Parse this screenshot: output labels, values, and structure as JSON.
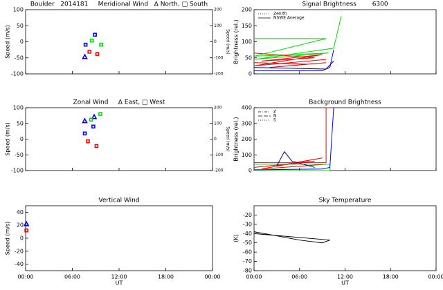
{
  "chart_data": [
    {
      "type": "scatter",
      "title": "Boulder   2014181     Meridional Wind   Δ North, □ South",
      "ylabel": "Speed (m/s)",
      "y2label": "Speed (m/s)",
      "xlim": [
        0,
        24
      ],
      "xticks": [
        0,
        6,
        12,
        18,
        24
      ],
      "ylim": [
        -100,
        100
      ],
      "yticks": [
        -100,
        -50,
        0,
        50,
        100
      ],
      "y2lim": [
        -200,
        200
      ],
      "y2ticks": [
        -200,
        -100,
        0,
        100,
        200
      ],
      "series": [
        {
          "color": "#0000ff",
          "marker": "triangle",
          "x": [
            7.6
          ],
          "values": [
            -47
          ]
        },
        {
          "color": "#0000ff",
          "marker": "square",
          "x": [
            7.7,
            8.9
          ],
          "values": [
            -9,
            22
          ]
        },
        {
          "color": "#00dd00",
          "marker": "square",
          "x": [
            8.5,
            9.7
          ],
          "values": [
            4,
            -9
          ]
        },
        {
          "color": "#ff0000",
          "marker": "square",
          "x": [
            8.2,
            9.2
          ],
          "values": [
            -31,
            -38
          ]
        }
      ]
    },
    {
      "type": "line",
      "title": "Signal Brightness        6300",
      "ylabel": "Brightness (rel.)",
      "xlim": [
        0,
        24
      ],
      "xticks": [
        0,
        6,
        12,
        18,
        24
      ],
      "ylim": [
        0,
        200
      ],
      "yticks": [
        0,
        50,
        100,
        150,
        200
      ],
      "legend": [
        {
          "label": "Zenith",
          "dash": "1,2"
        },
        {
          "label": "NSWE Average",
          "dash": "none"
        }
      ],
      "series": [
        {
          "color": "#00dd00",
          "x": [
            0,
            9.5,
            0,
            9.8,
            0,
            10.5,
            11.5
          ],
          "values": [
            110,
            110,
            55,
            65,
            45,
            80,
            180
          ]
        },
        {
          "color": "#ff0000",
          "x": [
            0,
            8,
            1,
            9,
            0,
            9.5
          ],
          "values": [
            65,
            50,
            40,
            60,
            25,
            45
          ]
        },
        {
          "color": "#cc0000",
          "x": [
            0,
            7,
            2,
            9.5
          ],
          "values": [
            35,
            30,
            20,
            35
          ]
        },
        {
          "color": "#0000ff",
          "x": [
            0,
            9,
            10,
            10.5
          ],
          "values": [
            10,
            10,
            20,
            75
          ]
        },
        {
          "color": "#00008b",
          "x": [
            0,
            9.5,
            10.5
          ],
          "values": [
            20,
            15,
            40
          ]
        }
      ]
    },
    {
      "type": "scatter",
      "title": "Zonal Wind     Δ East, □ West",
      "ylabel": "Speed (m/s)",
      "y2label": "Speed (m/s)",
      "xlim": [
        0,
        24
      ],
      "xticks": [
        0,
        6,
        12,
        18,
        24
      ],
      "ylim": [
        -100,
        100
      ],
      "yticks": [
        -100,
        -50,
        0,
        50,
        100
      ],
      "y2lim": [
        -200,
        200
      ],
      "y2ticks": [
        -200,
        -100,
        0,
        100,
        200
      ],
      "series": [
        {
          "color": "#0000ff",
          "marker": "triangle",
          "x": [
            7.6,
            8.8
          ],
          "values": [
            58,
            71
          ]
        },
        {
          "color": "#0000ff",
          "marker": "square",
          "x": [
            7.6,
            8.7
          ],
          "values": [
            18,
            40
          ]
        },
        {
          "color": "#00dd00",
          "marker": "square",
          "x": [
            8.4,
            9.6
          ],
          "values": [
            62,
            80
          ]
        },
        {
          "color": "#ff0000",
          "marker": "square",
          "x": [
            8.0,
            9.1
          ],
          "values": [
            -7,
            -22
          ]
        }
      ]
    },
    {
      "type": "line",
      "title": "Background Brightness",
      "ylabel": "Brightness (rel.)",
      "xlim": [
        0,
        24
      ],
      "xticks": [
        0,
        6,
        12,
        18,
        24
      ],
      "ylim": [
        0,
        400
      ],
      "yticks": [
        0,
        100,
        200,
        300,
        400
      ],
      "legend": [
        {
          "label": "Z",
          "dash": "4,2,1,2"
        },
        {
          "label": "N",
          "dash": "6,2"
        },
        {
          "label": "S",
          "dash": "1,2"
        }
      ],
      "series": [
        {
          "color": "#ff0000",
          "x": [
            0,
            9.5,
            9.5,
            10
          ],
          "values": [
            50,
            50,
            400,
            400
          ]
        },
        {
          "color": "#ff0000",
          "x": [
            0,
            8,
            3,
            9,
            1,
            9.5
          ],
          "values": [
            20,
            60,
            30,
            80,
            10,
            40
          ]
        },
        {
          "color": "#00dd00",
          "x": [
            0,
            10,
            10,
            0
          ],
          "values": [
            40,
            40,
            0,
            0
          ]
        },
        {
          "color": "#0000ff",
          "x": [
            0,
            9,
            10,
            10.5
          ],
          "values": [
            5,
            10,
            20,
            400
          ]
        },
        {
          "color": "#00008b",
          "x": [
            3,
            4,
            5,
            8
          ],
          "values": [
            30,
            120,
            60,
            20
          ]
        }
      ]
    },
    {
      "type": "scatter",
      "title": "Vertical Wind",
      "ylabel": "Speed (m/s)",
      "xlabel": "UT",
      "xlim": [
        0,
        24
      ],
      "xticks": [
        {
          "value": 0,
          "label": "00:00"
        },
        {
          "value": 6,
          "label": "06:00"
        },
        {
          "value": 12,
          "label": "12:00"
        },
        {
          "value": 18,
          "label": "18:00"
        },
        {
          "value": 24,
          "label": "00:00"
        }
      ],
      "ylim": [
        -50,
        50
      ],
      "yticks": [
        -40,
        -20,
        0,
        20,
        40
      ],
      "series": [
        {
          "color": "#0000ff",
          "marker": "triangle",
          "x": [
            0.1
          ],
          "values": [
            22
          ]
        },
        {
          "color": "#ff0000",
          "marker": "square",
          "x": [
            0.1
          ],
          "values": [
            12
          ]
        }
      ]
    },
    {
      "type": "line",
      "title": "Sky Temperature",
      "ylabel": "(K)",
      "xlabel": "UT",
      "xlim": [
        0,
        24
      ],
      "xticks": [
        {
          "value": 0,
          "label": "00:00"
        },
        {
          "value": 6,
          "label": "06:00"
        },
        {
          "value": 12,
          "label": "12:00"
        },
        {
          "value": 18,
          "label": "18:00"
        },
        {
          "value": 24,
          "label": "00:00"
        }
      ],
      "ylim": [
        -80,
        -10
      ],
      "yticks": [
        -80,
        -70,
        -60,
        -50,
        -40,
        -30,
        -20
      ],
      "series": [
        {
          "color": "#000000",
          "x": [
            0,
            6,
            9,
            10,
            0,
            10
          ],
          "values": [
            -38,
            -47,
            -50,
            -47,
            -40,
            -47
          ]
        }
      ]
    }
  ]
}
